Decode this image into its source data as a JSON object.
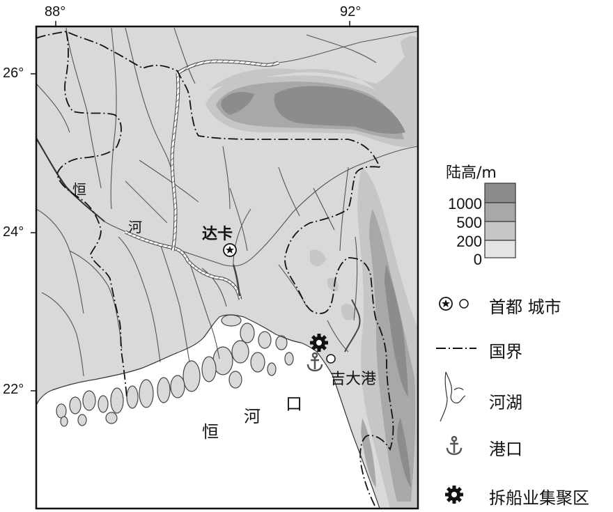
{
  "axis_labels": {
    "lon_88": "88°",
    "lon_92": "92°",
    "lat_26": "26°",
    "lat_24": "24°",
    "lat_22": "22°"
  },
  "places": {
    "capital": "达卡",
    "port": "吉大港",
    "river_ganges_1": "恒",
    "river_ganges_2": "河",
    "estuary_1": "恒",
    "estuary_2": "河",
    "estuary_3": "口"
  },
  "legend": {
    "elevation_title": "陆高/m",
    "elevation_levels": [
      "1000",
      "500",
      "200",
      "0"
    ],
    "elevation_colors": [
      "#8c8c8c",
      "#a8a8a8",
      "#c6c6c6",
      "#e4e4e4"
    ],
    "capital_city_label": "首都 城市",
    "border_label": "国界",
    "river_lake_label": "河湖",
    "port_label": "港口",
    "shipbreaking_label": "拆船业集聚区",
    "icons": [
      "capital-star-icon",
      "city-circle-icon",
      "border-line-icon",
      "river-icon",
      "anchor-icon",
      "gear-icon"
    ]
  }
}
